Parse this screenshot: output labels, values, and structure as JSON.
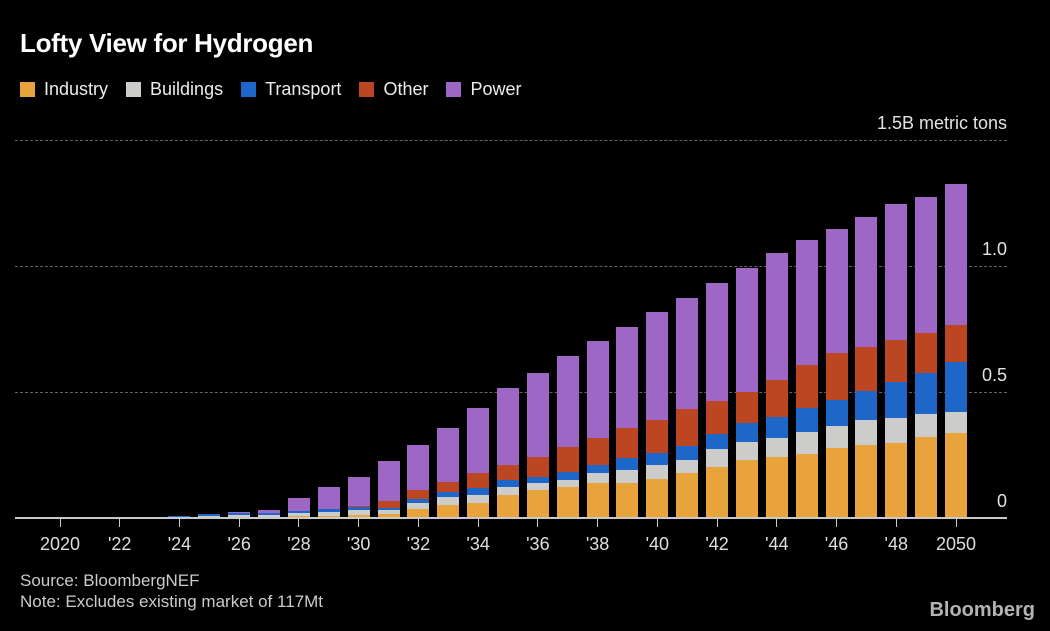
{
  "chart_data": {
    "type": "bar",
    "stacked": true,
    "title": "Lofty View for Hydrogen",
    "grid": "horizontal-dashed",
    "legend_position": "top-left",
    "categories": [
      2020,
      2021,
      2022,
      2023,
      2024,
      2025,
      2026,
      2027,
      2028,
      2029,
      2030,
      2031,
      2032,
      2033,
      2034,
      2035,
      2036,
      2037,
      2038,
      2039,
      2040,
      2041,
      2042,
      2043,
      2044,
      2045,
      2046,
      2047,
      2048,
      2049,
      2050
    ],
    "series": [
      {
        "name": "Industry",
        "color": "#E8A33D",
        "values": [
          0,
          0,
          0.001,
          0.001,
          0.001,
          0.002,
          0.003,
          0.004,
          0.006,
          0.008,
          0.012,
          0.014,
          0.036,
          0.052,
          0.06,
          0.091,
          0.111,
          0.123,
          0.139,
          0.139,
          0.155,
          0.179,
          0.202,
          0.23,
          0.242,
          0.254,
          0.278,
          0.29,
          0.298,
          0.321,
          0.337
        ]
      },
      {
        "name": "Buildings",
        "color": "#CCCDCB",
        "values": [
          0,
          0.001,
          0.001,
          0.001,
          0.002,
          0.004,
          0.007,
          0.008,
          0.012,
          0.014,
          0.018,
          0.016,
          0.024,
          0.03,
          0.032,
          0.032,
          0.028,
          0.028,
          0.04,
          0.052,
          0.056,
          0.052,
          0.07,
          0.071,
          0.075,
          0.087,
          0.087,
          0.099,
          0.099,
          0.091,
          0.083
        ]
      },
      {
        "name": "Transport",
        "color": "#1F66C9",
        "values": [
          0,
          0.001,
          0.002,
          0.003,
          0.005,
          0.008,
          0.009,
          0.006,
          0.008,
          0.012,
          0.012,
          0.01,
          0.014,
          0.02,
          0.028,
          0.028,
          0.024,
          0.032,
          0.032,
          0.048,
          0.048,
          0.056,
          0.062,
          0.075,
          0.083,
          0.095,
          0.103,
          0.115,
          0.143,
          0.163,
          0.198
        ]
      },
      {
        "name": "Other",
        "color": "#BC4522",
        "values": [
          0,
          0,
          0,
          0,
          0,
          0,
          0,
          0,
          0.001,
          0.002,
          0.004,
          0.028,
          0.036,
          0.042,
          0.06,
          0.06,
          0.079,
          0.099,
          0.107,
          0.119,
          0.131,
          0.147,
          0.129,
          0.123,
          0.147,
          0.171,
          0.187,
          0.175,
          0.167,
          0.159,
          0.147
        ]
      },
      {
        "name": "Power",
        "color": "#9E67C5",
        "values": [
          0,
          0,
          0,
          0,
          0.001,
          0.002,
          0.003,
          0.014,
          0.053,
          0.087,
          0.117,
          0.158,
          0.181,
          0.213,
          0.257,
          0.305,
          0.333,
          0.361,
          0.385,
          0.401,
          0.428,
          0.44,
          0.468,
          0.492,
          0.504,
          0.496,
          0.492,
          0.516,
          0.54,
          0.54,
          0.56
        ]
      }
    ],
    "y_axis": {
      "ylim": [
        0,
        1.5
      ],
      "gridlines": [
        {
          "value": 1.5,
          "label": "1.5B metric tons"
        },
        {
          "value": 1.0,
          "label": "1.0"
        },
        {
          "value": 0.5,
          "label": "0.5"
        },
        {
          "value": 0.0,
          "label": "0"
        }
      ]
    },
    "x_tick_labels": [
      "2020",
      "'22",
      "'24",
      "'26",
      "'28",
      "'30",
      "'32",
      "'34",
      "'36",
      "'38",
      "'40",
      "'42",
      "'44",
      "'46",
      "'48",
      "2050"
    ]
  },
  "footer": {
    "source": "Source: BloombergNEF",
    "note": "Note: Excludes existing market of 117Mt",
    "logo": "Bloomberg"
  }
}
